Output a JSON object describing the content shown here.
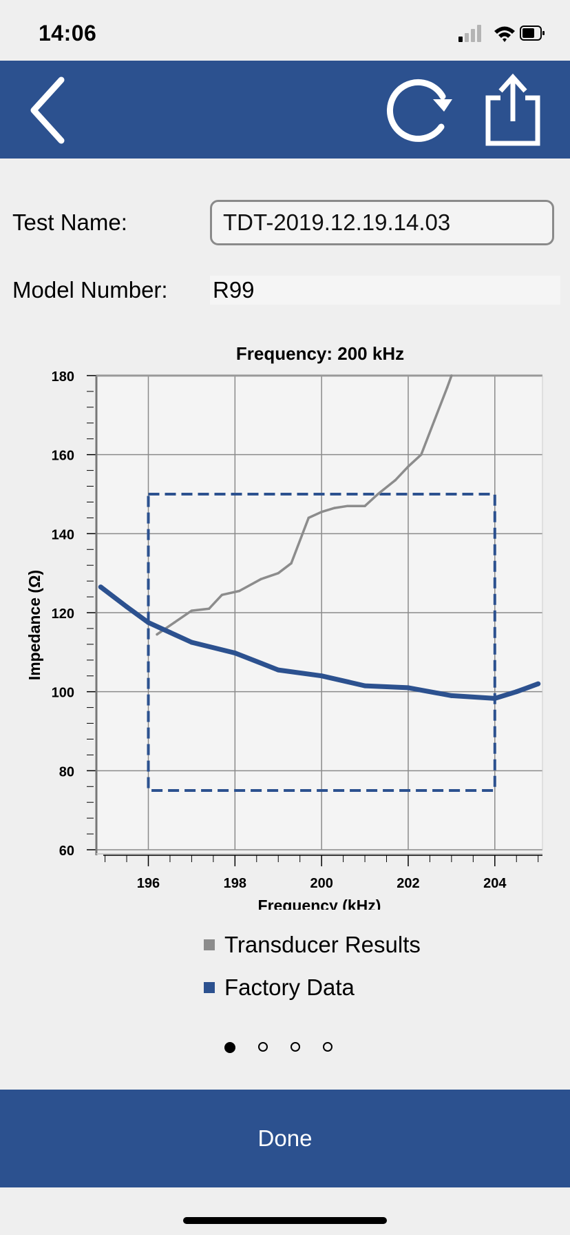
{
  "status_bar": {
    "time": "14:06"
  },
  "nav": {
    "back_icon": "chevron-left-icon",
    "refresh_icon": "refresh-icon",
    "share_icon": "share-icon"
  },
  "form": {
    "test_name_label": "Test Name:",
    "test_name_value": "TDT-2019.12.19.14.03",
    "model_number_label": "Model Number:",
    "model_number_value": "R99"
  },
  "chart_data": {
    "type": "line",
    "title": "Frequency: 200 kHz",
    "xlabel": "Frequency (kHz)",
    "ylabel": "Impedance (Ω)",
    "xlim": [
      194.8,
      205.1
    ],
    "ylim": [
      60,
      180
    ],
    "x_ticks": [
      196,
      198,
      200,
      202,
      204
    ],
    "y_ticks": [
      60,
      80,
      100,
      120,
      140,
      160,
      180
    ],
    "grid": true,
    "legend": "bottom",
    "series": [
      {
        "name": "Transducer Results",
        "color": "#8c8c8c",
        "x": [
          196.2,
          196.6,
          197.0,
          197.4,
          197.7,
          198.1,
          198.6,
          199.0,
          199.3,
          199.7,
          200.0,
          200.3,
          200.6,
          201.0,
          201.3,
          201.7,
          202.0,
          202.3,
          202.6,
          202.9,
          203.0
        ],
        "y": [
          114.5,
          117.5,
          120.5,
          121,
          124.5,
          125.5,
          128.5,
          130,
          132.5,
          144,
          145.5,
          146.5,
          147,
          147,
          150,
          153.5,
          157,
          160,
          168.5,
          177,
          180
        ]
      },
      {
        "name": "Factory Data",
        "color": "#2c518f",
        "x": [
          194.9,
          195.5,
          196.0,
          196.5,
          197.0,
          198.0,
          199.0,
          200.0,
          201.0,
          202.0,
          203.0,
          204.0,
          204.5,
          205.0
        ],
        "y": [
          126.5,
          121.5,
          117.5,
          115,
          112.5,
          109.8,
          105.5,
          104,
          101.5,
          101,
          99,
          98.3,
          100,
          102
        ]
      }
    ],
    "spec_box": {
      "color": "#2c518f",
      "x_range": [
        196,
        204
      ],
      "y_range": [
        75,
        150
      ]
    }
  },
  "pagination": {
    "count": 4,
    "active": 0
  },
  "done_button": {
    "label": "Done"
  }
}
